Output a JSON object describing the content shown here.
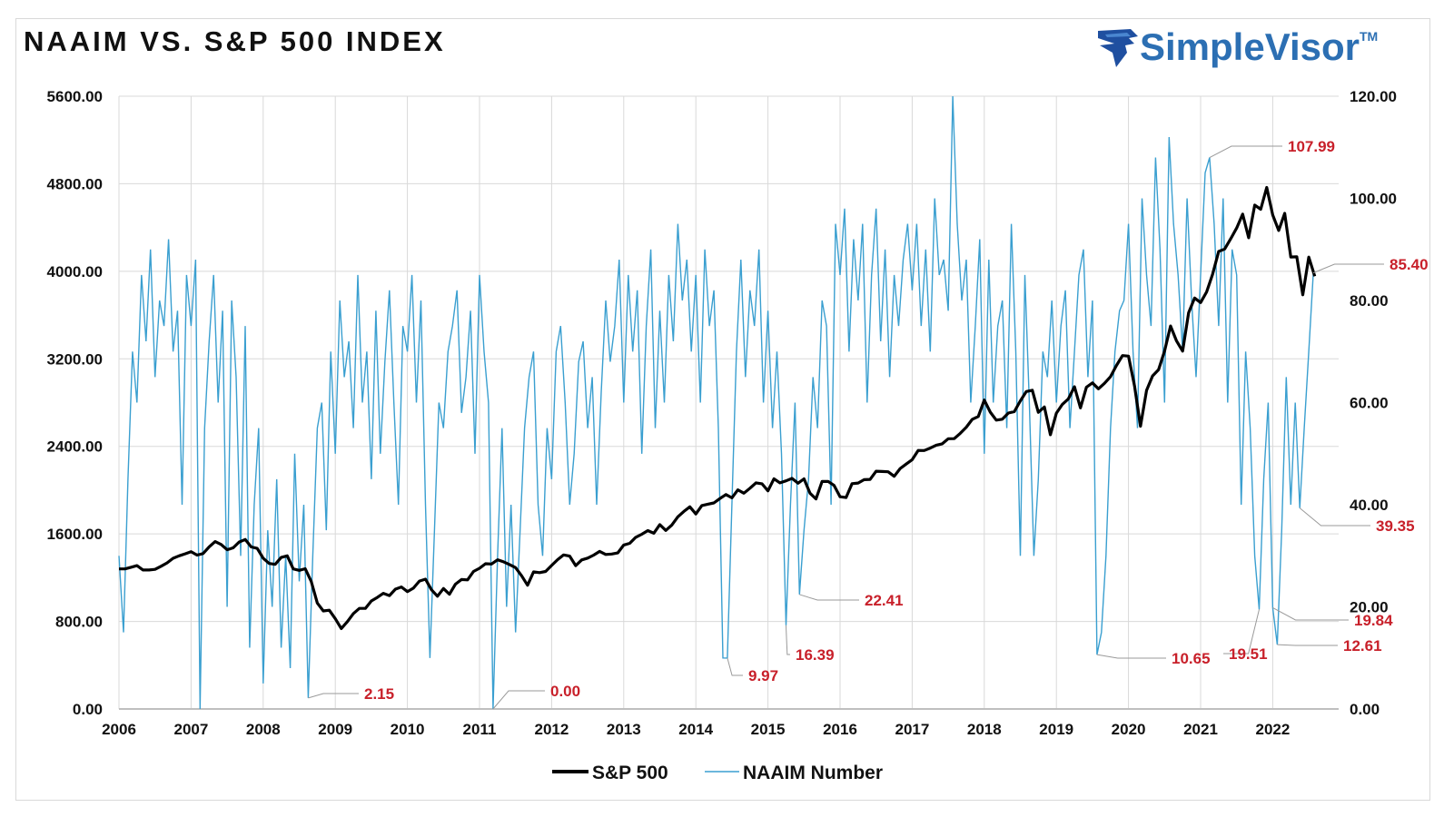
{
  "title": "NAAIM VS. S&P 500 INDEX",
  "logo": {
    "text": "SimpleVisor",
    "tm": "TM",
    "color": "#2c6fb3"
  },
  "chart_data": {
    "type": "line",
    "title": "NAAIM VS. S&P 500 INDEX",
    "x_ticks": [
      "2006",
      "2007",
      "2008",
      "2009",
      "2010",
      "2011",
      "2012",
      "2013",
      "2014",
      "2015",
      "2016",
      "2017",
      "2018",
      "2019",
      "2020",
      "2021",
      "2022"
    ],
    "xlim": [
      2006,
      2022.95
    ],
    "y_left": {
      "lim": [
        0,
        5600
      ],
      "ticks": [
        "0.00",
        "800.00",
        "1600.00",
        "2400.00",
        "3200.00",
        "4000.00",
        "4800.00",
        "5600.00"
      ]
    },
    "y_right": {
      "lim": [
        0,
        120
      ],
      "ticks": [
        "0.00",
        "20.00",
        "40.00",
        "60.00",
        "80.00",
        "100.00",
        "120.00"
      ]
    },
    "grid": true,
    "legend_placement": "bottom-center",
    "series": [
      {
        "name": "S&P 500",
        "axis": "left",
        "color": "#000000",
        "start_year": 2006,
        "step": "monthly",
        "values": [
          1280,
          1280,
          1295,
          1310,
          1270,
          1270,
          1276,
          1304,
          1335,
          1377,
          1400,
          1418,
          1438,
          1406,
          1420,
          1482,
          1530,
          1503,
          1455,
          1473,
          1526,
          1549,
          1481,
          1468,
          1378,
          1330,
          1322,
          1385,
          1400,
          1280,
          1267,
          1282,
          1166,
          968,
          896,
          903,
          825,
          735,
          797,
          872,
          919,
          919,
          987,
          1020,
          1057,
          1036,
          1095,
          1115,
          1073,
          1104,
          1169,
          1186,
          1089,
          1030,
          1101,
          1049,
          1141,
          1183,
          1180,
          1257,
          1286,
          1327,
          1325,
          1363,
          1345,
          1320,
          1292,
          1218,
          1131,
          1253,
          1246,
          1257,
          1312,
          1365,
          1408,
          1397,
          1310,
          1362,
          1379,
          1406,
          1440,
          1412,
          1416,
          1426,
          1498,
          1514,
          1569,
          1597,
          1630,
          1606,
          1685,
          1632,
          1681,
          1756,
          1805,
          1848,
          1782,
          1859,
          1872,
          1883,
          1923,
          1960,
          1930,
          2003,
          1972,
          2018,
          2067,
          2058,
          1994,
          2104,
          2067,
          2085,
          2107,
          2063,
          2103,
          1972,
          1920,
          2079,
          2080,
          2043,
          1940,
          1932,
          2059,
          2065,
          2096,
          2098,
          2173,
          2170,
          2168,
          2126,
          2198,
          2238,
          2278,
          2363,
          2362,
          2384,
          2411,
          2423,
          2470,
          2471,
          2519,
          2575,
          2647,
          2673,
          2823,
          2713,
          2640,
          2648,
          2705,
          2718,
          2816,
          2901,
          2913,
          2711,
          2760,
          2506,
          2704,
          2784,
          2834,
          2945,
          2752,
          2941,
          2980,
          2926,
          2976,
          3037,
          3140,
          3230,
          3225,
          2954,
          2584,
          2912,
          3044,
          3100,
          3271,
          3500,
          3363,
          3270,
          3621,
          3756,
          3714,
          3811,
          3973,
          4181,
          4204,
          4297,
          4395,
          4522,
          4307,
          4605,
          4567,
          4766,
          4515,
          4373,
          4530,
          4131,
          4132,
          3785,
          4130,
          3955
        ]
      },
      {
        "name": "NAAIM Number",
        "axis": "right",
        "color": "#3a9fd0",
        "start_year": 2006,
        "step": "1/16 year",
        "values": [
          30,
          15,
          45,
          70,
          60,
          85,
          72,
          90,
          65,
          80,
          75,
          92,
          70,
          78,
          40,
          85,
          75,
          88,
          0,
          55,
          72,
          85,
          60,
          78,
          20,
          80,
          65,
          30,
          75,
          12,
          40,
          55,
          5,
          35,
          20,
          45,
          12,
          30,
          8,
          50,
          25,
          40,
          2.15,
          30,
          55,
          60,
          35,
          70,
          50,
          80,
          65,
          72,
          55,
          85,
          60,
          70,
          45,
          78,
          50,
          68,
          82,
          60,
          40,
          75,
          70,
          85,
          60,
          80,
          40,
          10,
          35,
          60,
          55,
          70,
          75,
          82,
          58,
          65,
          78,
          50,
          85,
          70,
          60,
          0,
          30,
          55,
          20,
          40,
          15,
          35,
          55,
          65,
          70,
          40,
          30,
          55,
          45,
          70,
          75,
          60,
          40,
          50,
          68,
          72,
          55,
          65,
          40,
          62,
          80,
          68,
          75,
          88,
          60,
          85,
          70,
          82,
          50,
          75,
          90,
          55,
          78,
          60,
          85,
          72,
          95,
          80,
          88,
          70,
          85,
          60,
          90,
          75,
          82,
          55,
          10,
          9.97,
          40,
          70,
          88,
          65,
          82,
          75,
          90,
          60,
          78,
          55,
          70,
          50,
          16.39,
          40,
          60,
          22.41,
          35,
          45,
          65,
          55,
          80,
          75,
          40,
          95,
          85,
          98,
          70,
          92,
          80,
          95,
          60,
          85,
          98,
          72,
          90,
          65,
          85,
          75,
          88,
          95,
          82,
          95,
          75,
          90,
          70,
          100,
          85,
          88,
          78,
          120,
          95,
          80,
          88,
          60,
          75,
          92,
          50,
          88,
          60,
          75,
          80,
          55,
          95,
          70,
          30,
          85,
          60,
          30,
          45,
          70,
          65,
          80,
          60,
          75,
          82,
          55,
          70,
          85,
          90,
          65,
          80,
          10.65,
          15,
          30,
          55,
          70,
          78,
          80,
          95,
          70,
          55,
          100,
          85,
          75,
          108,
          90,
          60,
          112,
          95,
          85,
          70,
          100,
          80,
          65,
          85,
          105,
          107.99,
          95,
          75,
          100,
          60,
          90,
          85,
          40,
          70,
          55,
          30,
          19.51,
          45,
          60,
          19.84,
          12.61,
          35,
          65,
          40,
          60,
          39.35,
          55,
          70,
          85.4
        ]
      }
    ],
    "annotations": [
      {
        "label": "2.15",
        "x": 2008.625,
        "y": 2.15
      },
      {
        "label": "0.00",
        "x": 2011.1875,
        "y": 0
      },
      {
        "label": "9.97",
        "x": 2014.4375,
        "y": 9.97
      },
      {
        "label": "16.39",
        "x": 2015.25,
        "y": 16.39
      },
      {
        "label": "22.41",
        "x": 2015.4375,
        "y": 22.41
      },
      {
        "label": "10.65",
        "x": 2019.5625,
        "y": 10.65
      },
      {
        "label": "19.51",
        "x": 2021.8125,
        "y": 19.51
      },
      {
        "label": "19.84",
        "x": 2022.0,
        "y": 19.84
      },
      {
        "label": "12.61",
        "x": 2022.0625,
        "y": 12.61
      },
      {
        "label": "39.35",
        "x": 2022.375,
        "y": 39.35
      },
      {
        "label": "85.40",
        "x": 2022.5625,
        "y": 85.4
      },
      {
        "label": "107.99",
        "x": 2021.125,
        "y": 107.99
      }
    ],
    "annotation_color": "#c8202a",
    "legend": [
      "S&P 500",
      "NAAIM Number"
    ]
  }
}
